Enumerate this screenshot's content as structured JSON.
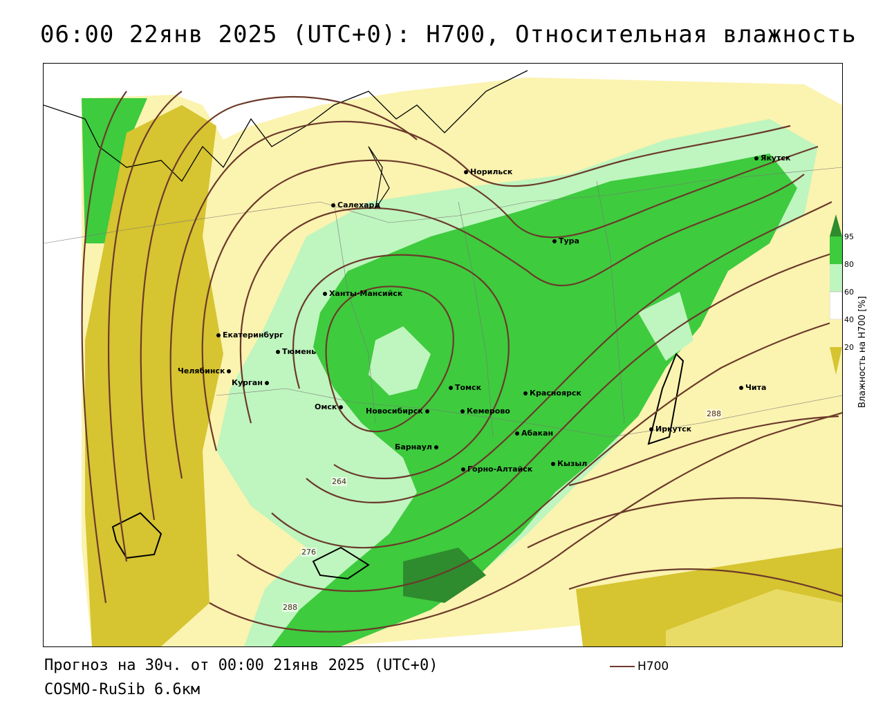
{
  "header": {
    "title": "06:00 22янв 2025 (UTC+0): H700, Относительная влажность"
  },
  "footer": {
    "forecast": "Прогноз на 30ч. от 00:00 21янв 2025 (UTC+0)",
    "model": "COSMO-RuSib 6.6км",
    "line_legend": "H700"
  },
  "legend": {
    "title": "Влажность на H700 [%]",
    "ticks": [
      "95",
      "80",
      "60",
      "40",
      "20"
    ],
    "colors": {
      "darkgreen": "#2e8b2e",
      "green": "#3ecb3e",
      "lightgreen": "#bff5bf",
      "white": "#ffffff",
      "lightyellow": "#fbf3b0",
      "yellow": "#d6c431",
      "contour": "#6b3a2a"
    }
  },
  "contour_labels": [
    "264",
    "276",
    "288",
    "288"
  ],
  "cities": [
    "Норильск",
    "Якутск",
    "Салехард",
    "Тура",
    "Ханты-Мансийск",
    "Екатеринбург",
    "Тюмень",
    "Челябинск",
    "Курган",
    "Омск",
    "Новосибирск",
    "Томск",
    "Красноярск",
    "Кемерово",
    "Абакан",
    "Барнаул",
    "Горно-Алтайск",
    "Кызыл",
    "Иркутск",
    "Чита"
  ]
}
